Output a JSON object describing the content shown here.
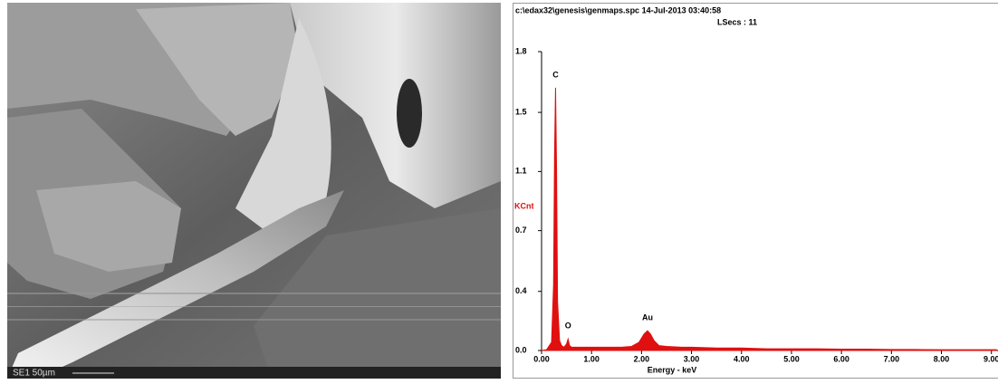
{
  "image": {
    "caption": "SE1 50µm"
  },
  "chart_data": {
    "type": "area",
    "title": "c:\\edax32\\genesis\\genmaps.spc 14-Jul-2013 03:40:58",
    "subtitle": "LSecs : 11",
    "ylabel": "KCnt",
    "xlabel": "Energy - keV",
    "color": "#e01010",
    "x": [
      0.0,
      0.1,
      0.2,
      0.24,
      0.26,
      0.28,
      0.3,
      0.32,
      0.36,
      0.4,
      0.45,
      0.5,
      0.53,
      0.56,
      0.6,
      0.7,
      0.8,
      0.9,
      1.0,
      1.2,
      1.4,
      1.6,
      1.8,
      1.95,
      2.05,
      2.12,
      2.18,
      2.25,
      2.35,
      2.5,
      2.8,
      3.0,
      3.5,
      4.0,
      4.5,
      5.0,
      5.5,
      6.0,
      6.5,
      7.0,
      7.5,
      8.0,
      8.5,
      9.0,
      9.1
    ],
    "values": [
      0,
      0.005,
      0.05,
      0.4,
      1.2,
      1.6,
      1.1,
      0.3,
      0.06,
      0.03,
      0.02,
      0.04,
      0.07,
      0.03,
      0.02,
      0.02,
      0.02,
      0.02,
      0.02,
      0.02,
      0.02,
      0.02,
      0.025,
      0.05,
      0.1,
      0.12,
      0.1,
      0.06,
      0.03,
      0.025,
      0.02,
      0.02,
      0.015,
      0.015,
      0.01,
      0.01,
      0.01,
      0.008,
      0.008,
      0.006,
      0.006,
      0.005,
      0.005,
      0.005,
      0.005
    ],
    "annotations": [
      {
        "text": "C",
        "x": 0.28,
        "y": 1.6
      },
      {
        "text": "O",
        "x": 0.53,
        "y": 0.07
      },
      {
        "text": "Au",
        "x": 2.12,
        "y": 0.12
      }
    ],
    "xlim": [
      0,
      9.15
    ],
    "ylim": [
      0,
      1.82
    ],
    "xticks": [
      {
        "value": 0,
        "label": "0.00"
      },
      {
        "value": 1,
        "label": "1.00"
      },
      {
        "value": 2,
        "label": "2.00"
      },
      {
        "value": 3,
        "label": "3.00"
      },
      {
        "value": 4,
        "label": "4.00"
      },
      {
        "value": 5,
        "label": "5.00"
      },
      {
        "value": 6,
        "label": "6.00"
      },
      {
        "value": 7,
        "label": "7.00"
      },
      {
        "value": 8,
        "label": "8.00"
      },
      {
        "value": 9,
        "label": "9.00"
      }
    ],
    "yticks": [
      {
        "value": 0,
        "label": "0.0"
      },
      {
        "value": 0.36,
        "label": "0.4"
      },
      {
        "value": 0.73,
        "label": "0.7"
      },
      {
        "value": 1.09,
        "label": "1.1"
      },
      {
        "value": 1.45,
        "label": "1.5"
      },
      {
        "value": 1.82,
        "label": "1.8"
      }
    ]
  }
}
